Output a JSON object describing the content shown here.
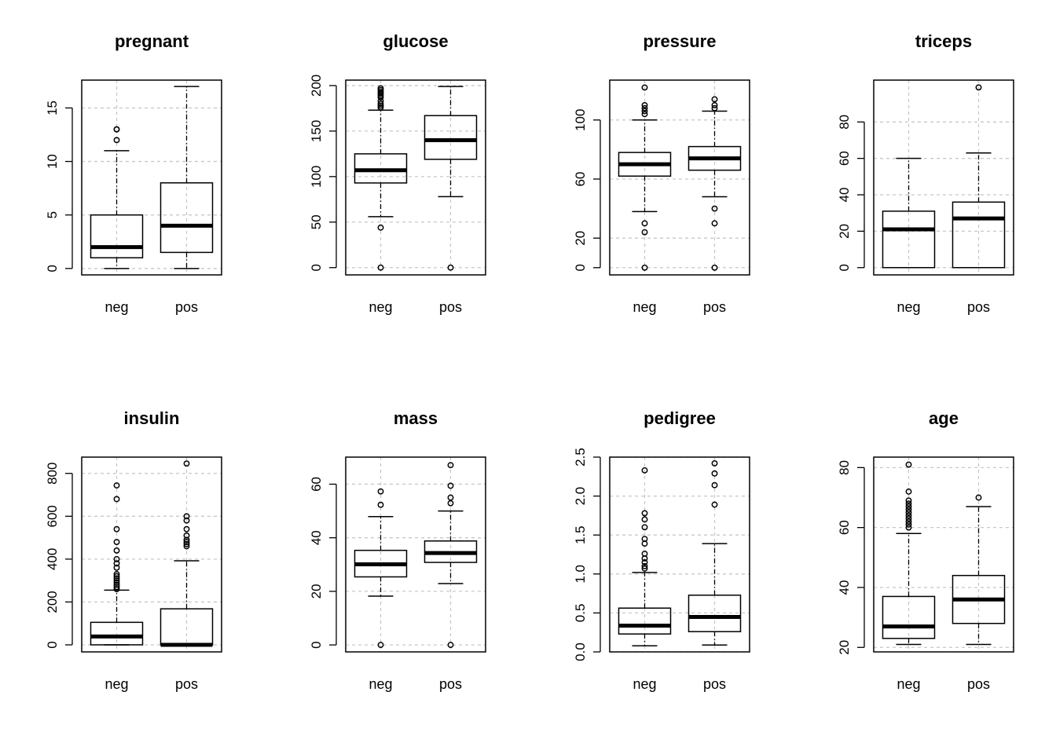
{
  "chart_data": [
    {
      "type": "boxplot",
      "title": "pregnant",
      "categories": [
        "neg",
        "pos"
      ],
      "yticks": [
        0,
        5,
        10,
        15
      ],
      "ylim": [
        -0.6,
        17.6
      ],
      "grid": true,
      "boxes": [
        {
          "name": "neg",
          "min": 0,
          "q1": 1,
          "median": 2,
          "q3": 5,
          "max": 11,
          "outliers": [
            12,
            13,
            13
          ]
        },
        {
          "name": "pos",
          "min": 0,
          "q1": 1.5,
          "median": 4,
          "q3": 8,
          "max": 17,
          "outliers": []
        }
      ]
    },
    {
      "type": "boxplot",
      "title": "glucose",
      "categories": [
        "neg",
        "pos"
      ],
      "yticks": [
        0,
        50,
        100,
        150,
        200
      ],
      "ylim": [
        -8,
        206
      ],
      "grid": true,
      "boxes": [
        {
          "name": "neg",
          "min": 56,
          "q1": 93,
          "median": 107,
          "q3": 125,
          "max": 173,
          "outliers": [
            0,
            44,
            176,
            178,
            180,
            183,
            187,
            189,
            191,
            193,
            195,
            197
          ]
        },
        {
          "name": "pos",
          "min": 78,
          "q1": 119,
          "median": 140,
          "q3": 167,
          "max": 199,
          "outliers": [
            0
          ]
        }
      ]
    },
    {
      "type": "boxplot",
      "title": "pressure",
      "categories": [
        "neg",
        "pos"
      ],
      "yticks": [
        0,
        20,
        60,
        100
      ],
      "ylim": [
        -4.9,
        127
      ],
      "grid": true,
      "boxes": [
        {
          "name": "neg",
          "min": 38,
          "q1": 62,
          "median": 70,
          "q3": 78,
          "max": 100,
          "outliers": [
            0,
            24,
            30,
            104,
            106,
            108,
            110,
            122
          ]
        },
        {
          "name": "pos",
          "min": 48,
          "q1": 66,
          "median": 74,
          "q3": 82,
          "max": 106,
          "outliers": [
            0,
            30,
            40,
            108,
            110,
            114
          ]
        }
      ]
    },
    {
      "type": "boxplot",
      "title": "triceps",
      "categories": [
        "neg",
        "pos"
      ],
      "yticks": [
        0,
        20,
        40,
        60,
        80
      ],
      "ylim": [
        -4,
        103
      ],
      "grid": true,
      "boxes": [
        {
          "name": "neg",
          "min": 0,
          "q1": 0,
          "median": 21,
          "q3": 31,
          "max": 60,
          "outliers": []
        },
        {
          "name": "pos",
          "min": 0,
          "q1": 0,
          "median": 27,
          "q3": 36,
          "max": 63,
          "outliers": [
            99
          ]
        }
      ]
    },
    {
      "type": "boxplot",
      "title": "insulin",
      "categories": [
        "neg",
        "pos"
      ],
      "yticks": [
        0,
        200,
        400,
        600,
        800
      ],
      "ylim": [
        -33,
        876
      ],
      "grid": true,
      "boxes": [
        {
          "name": "neg",
          "min": 0,
          "q1": 0,
          "median": 39,
          "q3": 105,
          "max": 255,
          "outliers": [
            260,
            270,
            280,
            290,
            300,
            310,
            320,
            330,
            360,
            380,
            400,
            440,
            480,
            540,
            680,
            744
          ]
        },
        {
          "name": "pos",
          "min": 0,
          "q1": 0,
          "median": 0,
          "q3": 168,
          "max": 392,
          "outliers": [
            460,
            470,
            480,
            490,
            510,
            540,
            580,
            600,
            846
          ]
        }
      ]
    },
    {
      "type": "boxplot",
      "title": "mass",
      "categories": [
        "neg",
        "pos"
      ],
      "yticks": [
        0,
        20,
        40,
        60
      ],
      "ylim": [
        -2.6,
        70.1
      ],
      "grid": true,
      "boxes": [
        {
          "name": "neg",
          "min": 18.2,
          "q1": 25.4,
          "median": 30.1,
          "q3": 35.3,
          "max": 47.9,
          "outliers": [
            0,
            52.3,
            57.3
          ]
        },
        {
          "name": "pos",
          "min": 22.9,
          "q1": 30.8,
          "median": 34.3,
          "q3": 38.8,
          "max": 50.0,
          "outliers": [
            0,
            52.9,
            55.0,
            59.4,
            67.1
          ]
        }
      ]
    },
    {
      "type": "boxplot",
      "title": "pedigree",
      "categories": [
        "neg",
        "pos"
      ],
      "yticks": [
        0.0,
        0.5,
        1.0,
        1.5,
        2.0,
        2.5
      ],
      "ylim": [
        0.0,
        2.5
      ],
      "grid": true,
      "boxes": [
        {
          "name": "neg",
          "min": 0.078,
          "q1": 0.23,
          "median": 0.336,
          "q3": 0.562,
          "max": 1.02,
          "outliers": [
            1.07,
            1.1,
            1.15,
            1.2,
            1.26,
            1.39,
            1.45,
            1.6,
            1.7,
            1.78,
            2.33
          ]
        },
        {
          "name": "pos",
          "min": 0.088,
          "q1": 0.26,
          "median": 0.449,
          "q3": 0.728,
          "max": 1.39,
          "outliers": [
            1.89,
            2.14,
            2.29,
            2.42
          ]
        }
      ]
    },
    {
      "type": "boxplot",
      "title": "age",
      "categories": [
        "neg",
        "pos"
      ],
      "yticks": [
        20,
        40,
        60,
        80
      ],
      "ylim": [
        18.5,
        83.5
      ],
      "grid": true,
      "boxes": [
        {
          "name": "neg",
          "min": 21,
          "q1": 23,
          "median": 27,
          "q3": 37,
          "max": 58,
          "outliers": [
            60,
            61,
            62,
            63,
            64,
            65,
            66,
            67,
            68,
            69,
            72,
            81
          ]
        },
        {
          "name": "pos",
          "min": 21,
          "q1": 28,
          "median": 36,
          "q3": 44,
          "max": 67,
          "outliers": [
            70
          ]
        }
      ]
    }
  ]
}
